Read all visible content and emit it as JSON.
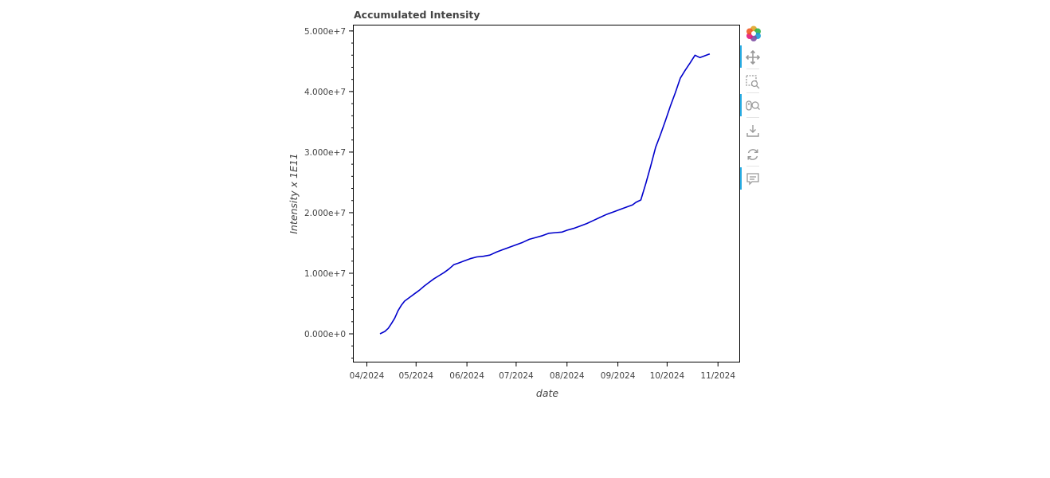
{
  "chart_data": {
    "type": "line",
    "title": "Accumulated Intensity",
    "xlabel": "date",
    "ylabel": "Intensity x 1E11",
    "x_tick_labels": [
      "04/2024",
      "05/2024",
      "06/2024",
      "07/2024",
      "08/2024",
      "09/2024",
      "10/2024",
      "11/2024"
    ],
    "x_tick_dates": [
      "2024-04-01",
      "2024-05-01",
      "2024-06-01",
      "2024-07-01",
      "2024-08-01",
      "2024-09-01",
      "2024-10-01",
      "2024-11-01"
    ],
    "y_tick_labels": [
      "0.000e+0",
      "1.000e+7",
      "2.000e+7",
      "3.000e+7",
      "4.000e+7",
      "5.000e+7"
    ],
    "y_tick_values": [
      0,
      10000000,
      20000000,
      30000000,
      40000000,
      50000000
    ],
    "xlim": [
      "2024-03-24",
      "2024-11-14"
    ],
    "ylim": [
      -4600000,
      50900000
    ],
    "grid": false,
    "series": [
      {
        "color": "#0000cc",
        "x": [
          "2024-04-09",
          "2024-04-12",
          "2024-04-14",
          "2024-04-16",
          "2024-04-18",
          "2024-04-20",
          "2024-04-22",
          "2024-04-24",
          "2024-04-26",
          "2024-04-28",
          "2024-04-30",
          "2024-05-03",
          "2024-05-06",
          "2024-05-09",
          "2024-05-12",
          "2024-05-15",
          "2024-05-18",
          "2024-05-21",
          "2024-05-24",
          "2024-05-27",
          "2024-05-30",
          "2024-06-03",
          "2024-06-07",
          "2024-06-11",
          "2024-06-15",
          "2024-06-19",
          "2024-06-23",
          "2024-06-27",
          "2024-07-01",
          "2024-07-05",
          "2024-07-09",
          "2024-07-13",
          "2024-07-17",
          "2024-07-21",
          "2024-07-25",
          "2024-07-29",
          "2024-08-01",
          "2024-08-05",
          "2024-08-09",
          "2024-08-13",
          "2024-08-17",
          "2024-08-21",
          "2024-08-25",
          "2024-08-29",
          "2024-09-02",
          "2024-09-06",
          "2024-09-10",
          "2024-09-12",
          "2024-09-15",
          "2024-09-18",
          "2024-09-21",
          "2024-09-24",
          "2024-09-27",
          "2024-09-30",
          "2024-10-03",
          "2024-10-06",
          "2024-10-09",
          "2024-10-12",
          "2024-10-15",
          "2024-10-18",
          "2024-10-21",
          "2024-10-24",
          "2024-10-27"
        ],
        "y": [
          0,
          400000,
          900000,
          1700000,
          2600000,
          3800000,
          4700000,
          5400000,
          5800000,
          6200000,
          6600000,
          7200000,
          7900000,
          8500000,
          9100000,
          9600000,
          10100000,
          10700000,
          11400000,
          11700000,
          12000000,
          12400000,
          12700000,
          12800000,
          13000000,
          13500000,
          13900000,
          14300000,
          14700000,
          15100000,
          15600000,
          15900000,
          16200000,
          16600000,
          16700000,
          16800000,
          17100000,
          17400000,
          17800000,
          18200000,
          18700000,
          19200000,
          19700000,
          20100000,
          20500000,
          20900000,
          21300000,
          21700000,
          22100000,
          24800000,
          27700000,
          30800000,
          32900000,
          35200000,
          37600000,
          39800000,
          42200000,
          43500000,
          44700000,
          46000000,
          45600000,
          45900000,
          46200000
        ]
      }
    ]
  },
  "toolbar": {
    "tools": [
      {
        "name": "bokeh-logo-icon",
        "active": false
      },
      {
        "name": "pan-icon",
        "active": true
      },
      {
        "name": "box-zoom-icon",
        "active": false
      },
      {
        "name": "wheel-zoom-icon",
        "active": true
      },
      {
        "name": "save-icon",
        "active": false
      },
      {
        "name": "reset-icon",
        "active": false
      },
      {
        "name": "hover-icon",
        "active": true
      }
    ]
  }
}
